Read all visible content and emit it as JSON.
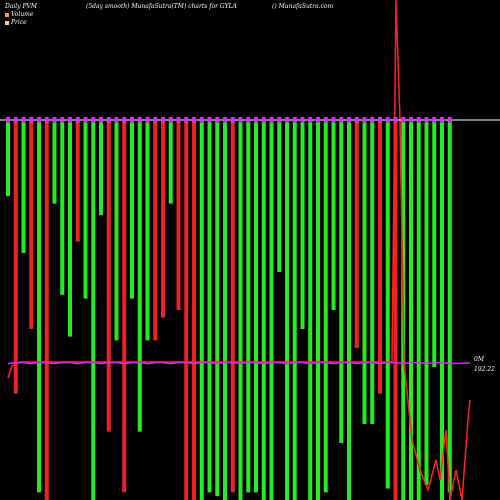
{
  "header": {
    "left": "Daily PVM",
    "center": "(5day smooth) MunafaSutra(TM) charts for GYLA",
    "right": "() MunafaSutra.com"
  },
  "legend": {
    "volume": "Volume",
    "price": "Price",
    "volume_color": "#ff9933",
    "price_color": "#ffcc99"
  },
  "labels": {
    "volume_axis": "0M",
    "price_last": "192.22"
  },
  "colors": {
    "up": "#22ee22",
    "down": "#ee2222",
    "marker": "#cc33ee",
    "baseline": "#ffffff",
    "price_line": "#ff2222",
    "background": "#000000"
  },
  "chart_data": {
    "type": "bar",
    "series": [
      {
        "name": "Volume",
        "direction": [
          "up",
          "down",
          "up",
          "down",
          "up",
          "down",
          "up",
          "up",
          "up",
          "down",
          "up",
          "up",
          "up",
          "down",
          "up",
          "down",
          "up",
          "up",
          "up",
          "down",
          "down",
          "up",
          "down",
          "down",
          "down",
          "up",
          "up",
          "up",
          "up",
          "down",
          "up",
          "up",
          "up",
          "up",
          "up",
          "up",
          "up",
          "up",
          "up",
          "up",
          "up",
          "up",
          "up",
          "up",
          "up",
          "down",
          "up",
          "up",
          "down",
          "up",
          "down",
          "up",
          "up",
          "up",
          "up",
          "up",
          "up",
          "up"
        ],
        "values": [
          20,
          72,
          35,
          55,
          98,
          100,
          22,
          46,
          57,
          32,
          47,
          100,
          25,
          82,
          58,
          98,
          47,
          82,
          58,
          58,
          52,
          22,
          50,
          100,
          100,
          100,
          98,
          99,
          100,
          98,
          100,
          98,
          98,
          100,
          100,
          40,
          100,
          100,
          55,
          100,
          100,
          98,
          50,
          85,
          100,
          60,
          80,
          80,
          72,
          97,
          100,
          100,
          100,
          100,
          96,
          65,
          100,
          98
        ]
      },
      {
        "name": "Price",
        "values": [
          null,
          192.22,
          192.22,
          192.22,
          192.22,
          192.22,
          192.22,
          192.22,
          192.22,
          192.22,
          192.22,
          192.22,
          192.22,
          192.22,
          192.22,
          192.22,
          192.22,
          192.22,
          192.22,
          192.22,
          192.22,
          192.22,
          192.22,
          192.22,
          192.22,
          192.22,
          192.22,
          192.22,
          192.22,
          192.22,
          192.22,
          192.22,
          192.22,
          192.22,
          192.22,
          192.22,
          192.22,
          192.22,
          192.22,
          192.22,
          192.22,
          192.22,
          192.22,
          192.22,
          192.22,
          192.22,
          192.22,
          192.22,
          192.22,
          192.22,
          192.22,
          192.22,
          192.22,
          192.22,
          192.22,
          192.22,
          192.22,
          192.22
        ]
      }
    ]
  }
}
